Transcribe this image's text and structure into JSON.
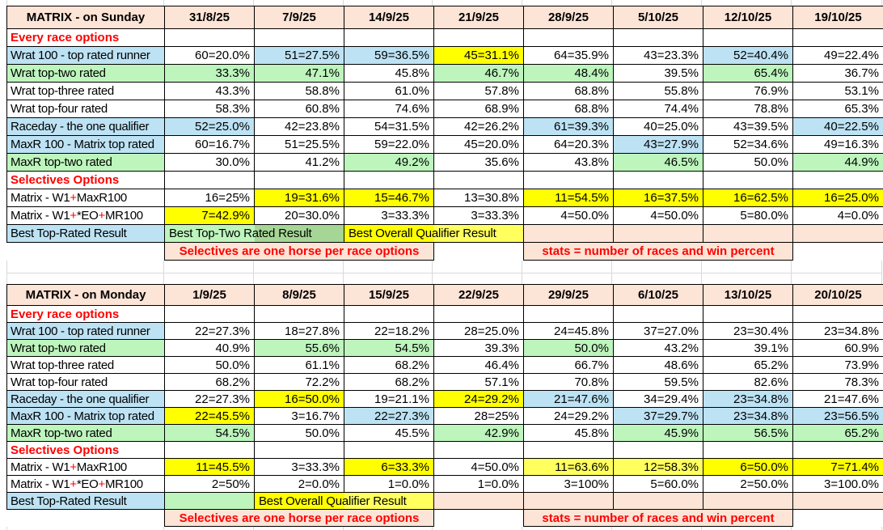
{
  "colors": {
    "header_fill": "#FCE4D6",
    "blue_fill": "#BDE2F4",
    "green_fill": "#BDF5BD",
    "dark_green_fill": "#A5D696",
    "yellow_fill": "#FFFF00",
    "light_yellow_fill": "#FFFF5E",
    "red_text": "#FF0000",
    "gridline": "#D9D9D9",
    "cell_border": "#000000"
  },
  "sunday": {
    "title": "MATRIX - on Sunday",
    "dates": [
      "31/8/25",
      "7/9/25",
      "14/9/25",
      "21/9/25",
      "28/9/25",
      "5/10/25",
      "12/10/25",
      "19/10/25"
    ],
    "rows": [
      {
        "type": "section",
        "label": "Every race options"
      },
      {
        "type": "data",
        "label": "Wrat 100 - top rated runner",
        "label_bg": "b",
        "cells": [
          [
            "60=20.0%",
            "w"
          ],
          [
            "51=27.5%",
            "b"
          ],
          [
            "59=36.5%",
            "b"
          ],
          [
            "45=31.1%",
            "y"
          ],
          [
            "64=35.9%",
            "w"
          ],
          [
            "43=23.3%",
            "w"
          ],
          [
            "52=40.4%",
            "b"
          ],
          [
            "49=22.4%",
            "w"
          ]
        ]
      },
      {
        "type": "data",
        "label": "Wrat top-two rated",
        "label_bg": "g",
        "cells": [
          [
            "33.3%",
            "g"
          ],
          [
            "47.1%",
            "g"
          ],
          [
            "45.8%",
            "w"
          ],
          [
            "46.7%",
            "g"
          ],
          [
            "48.4%",
            "g"
          ],
          [
            "39.5%",
            "w"
          ],
          [
            "65.4%",
            "g"
          ],
          [
            "36.7%",
            "w"
          ]
        ]
      },
      {
        "type": "data",
        "label": "Wrat top-three rated",
        "label_bg": "w",
        "cells": [
          [
            "43.3%",
            "w"
          ],
          [
            "58.8%",
            "w"
          ],
          [
            "61.0%",
            "w"
          ],
          [
            "57.8%",
            "w"
          ],
          [
            "68.8%",
            "w"
          ],
          [
            "55.8%",
            "w"
          ],
          [
            "76.9%",
            "w"
          ],
          [
            "53.1%",
            "w"
          ]
        ]
      },
      {
        "type": "data",
        "label": "Wrat top-four rated",
        "label_bg": "w",
        "cells": [
          [
            "58.3%",
            "w"
          ],
          [
            "60.8%",
            "w"
          ],
          [
            "74.6%",
            "w"
          ],
          [
            "68.9%",
            "w"
          ],
          [
            "68.8%",
            "w"
          ],
          [
            "74.4%",
            "w"
          ],
          [
            "78.8%",
            "w"
          ],
          [
            "65.3%",
            "w"
          ]
        ]
      },
      {
        "type": "data",
        "label": "Raceday - the one qualifier",
        "label_bg": "b",
        "cells": [
          [
            "52=25.0%",
            "b"
          ],
          [
            "42=23.8%",
            "w"
          ],
          [
            "54=31.5%",
            "w"
          ],
          [
            "42=26.2%",
            "w"
          ],
          [
            "61=39.3%",
            "b"
          ],
          [
            "40=25.0%",
            "w"
          ],
          [
            "43=39.5%",
            "w"
          ],
          [
            "40=22.5%",
            "b"
          ]
        ]
      },
      {
        "type": "data",
        "label": "MaxR 100 - Matrix top rated",
        "label_bg": "b",
        "cells": [
          [
            "60=16.7%",
            "w"
          ],
          [
            "51=25.5%",
            "w"
          ],
          [
            "59=22.0%",
            "w"
          ],
          [
            "45=20.0%",
            "w"
          ],
          [
            "64=20.3%",
            "w"
          ],
          [
            "43=27.9%",
            "b"
          ],
          [
            "52=34.6%",
            "w"
          ],
          [
            "49=16.3%",
            "w"
          ]
        ]
      },
      {
        "type": "data",
        "label": "MaxR top-two rated",
        "label_bg": "g",
        "cells": [
          [
            "30.0%",
            "w"
          ],
          [
            "41.2%",
            "w"
          ],
          [
            "49.2%",
            "g"
          ],
          [
            "35.6%",
            "w"
          ],
          [
            "43.8%",
            "w"
          ],
          [
            "46.5%",
            "g"
          ],
          [
            "50.0%",
            "w"
          ],
          [
            "44.9%",
            "g"
          ]
        ]
      },
      {
        "type": "section",
        "label": "Selectives Options"
      },
      {
        "type": "data",
        "label_parts": [
          {
            "t": "Matrix - W1"
          },
          {
            "t": "+",
            "red": true
          },
          {
            "t": "MaxR100"
          }
        ],
        "label_bg": "w",
        "cells": [
          [
            "16=25%",
            "w"
          ],
          [
            "19=31.6%",
            "y"
          ],
          [
            "15=46.7%",
            "y"
          ],
          [
            "13=30.8%",
            "w"
          ],
          [
            "11=54.5%",
            "y"
          ],
          [
            "16=37.5%",
            "y"
          ],
          [
            "16=62.5%",
            "y"
          ],
          [
            "16=25.0%",
            "y"
          ]
        ]
      },
      {
        "type": "data",
        "label_parts": [
          {
            "t": "Matrix - W1"
          },
          {
            "t": "+",
            "red": true
          },
          {
            "t": "*EO"
          },
          {
            "t": "+",
            "red": true
          },
          {
            "t": "MR100"
          }
        ],
        "label_bg": "w",
        "cells": [
          [
            "7=42.9%",
            "y"
          ],
          [
            "20=30.0%",
            "w"
          ],
          [
            "3=33.3%",
            "w"
          ],
          [
            "3=33.3%",
            "w"
          ],
          [
            "4=50.0%",
            "w"
          ],
          [
            "4=50.0%",
            "w"
          ],
          [
            "5=80.0%",
            "w"
          ],
          [
            "4=0.0%",
            "w"
          ]
        ]
      }
    ],
    "best_row": {
      "label": "Best Top-Rated Result",
      "banners": [
        {
          "text": "Best Top-Two Rated Result",
          "cells": [
            "bg-g",
            "bg-g2"
          ]
        },
        {
          "text": "Best Overall Qualifier Result",
          "cells": [
            "bg-y",
            "bg-ly"
          ]
        },
        {
          "text": "",
          "cells": [
            "bg-peach"
          ]
        },
        {
          "text": "",
          "cells": [
            "bg-peach"
          ]
        },
        {
          "text": "",
          "cells": [
            "bg-peach"
          ]
        },
        {
          "text": "",
          "cells": [
            "bg-peach"
          ]
        }
      ]
    },
    "note_row": {
      "segments": [
        {
          "text": "Selectives are one horse per race options",
          "span": 3,
          "box": true
        },
        {
          "text": "",
          "span": 1,
          "box": false
        },
        {
          "text": "stats = number of races and win percent",
          "span": 3,
          "box": true
        },
        {
          "text": "",
          "span": 1,
          "box": false
        }
      ]
    }
  },
  "monday": {
    "title": "MATRIX - on Monday",
    "dates": [
      "1/9/25",
      "8/9/25",
      "15/9/25",
      "22/9/25",
      "29/9/25",
      "6/10/25",
      "13/10/25",
      "20/10/25"
    ],
    "rows": [
      {
        "type": "section",
        "label": "Every race options"
      },
      {
        "type": "data",
        "label": "Wrat 100 - top rated runner",
        "label_bg": "b",
        "cells": [
          [
            "22=27.3%",
            "w"
          ],
          [
            "18=27.8%",
            "w"
          ],
          [
            "22=18.2%",
            "w"
          ],
          [
            "28=25.0%",
            "w"
          ],
          [
            "24=45.8%",
            "w"
          ],
          [
            "37=27.0%",
            "w"
          ],
          [
            "23=30.4%",
            "w"
          ],
          [
            "23=34.8%",
            "w"
          ]
        ]
      },
      {
        "type": "data",
        "label": "Wrat top-two rated",
        "label_bg": "g",
        "cells": [
          [
            "40.9%",
            "w"
          ],
          [
            "55.6%",
            "g"
          ],
          [
            "54.5%",
            "g"
          ],
          [
            "39.3%",
            "w"
          ],
          [
            "50.0%",
            "g"
          ],
          [
            "43.2%",
            "w"
          ],
          [
            "39.1%",
            "w"
          ],
          [
            "60.9%",
            "w"
          ]
        ]
      },
      {
        "type": "data",
        "label": "Wrat top-three rated",
        "label_bg": "w",
        "cells": [
          [
            "50.0%",
            "w"
          ],
          [
            "61.1%",
            "w"
          ],
          [
            "68.2%",
            "w"
          ],
          [
            "46.4%",
            "w"
          ],
          [
            "66.7%",
            "w"
          ],
          [
            "48.6%",
            "w"
          ],
          [
            "65.2%",
            "w"
          ],
          [
            "73.9%",
            "w"
          ]
        ]
      },
      {
        "type": "data",
        "label": "Wrat top-four rated",
        "label_bg": "w",
        "cells": [
          [
            "68.2%",
            "w"
          ],
          [
            "72.2%",
            "w"
          ],
          [
            "68.2%",
            "w"
          ],
          [
            "57.1%",
            "w"
          ],
          [
            "70.8%",
            "w"
          ],
          [
            "59.5%",
            "w"
          ],
          [
            "82.6%",
            "w"
          ],
          [
            "78.3%",
            "w"
          ]
        ]
      },
      {
        "type": "data",
        "label": "Raceday - the one qualifier",
        "label_bg": "b",
        "cells": [
          [
            "22=27.3%",
            "w"
          ],
          [
            "16=50.0%",
            "y"
          ],
          [
            "19=21.1%",
            "w"
          ],
          [
            "24=29.2%",
            "y"
          ],
          [
            "21=47.6%",
            "b"
          ],
          [
            "34=29.4%",
            "w"
          ],
          [
            "23=34.8%",
            "b"
          ],
          [
            "21=47.6%",
            "w"
          ]
        ]
      },
      {
        "type": "data",
        "label": "MaxR 100 - Matrix top rated",
        "label_bg": "b",
        "cells": [
          [
            "22=45.5%",
            "y"
          ],
          [
            "3=16.7%",
            "w"
          ],
          [
            "22=27.3%",
            "b"
          ],
          [
            "28=25%",
            "w"
          ],
          [
            "24=29.2%",
            "w"
          ],
          [
            "37=29.7%",
            "b"
          ],
          [
            "23=34.8%",
            "b"
          ],
          [
            "23=56.5%",
            "b"
          ]
        ]
      },
      {
        "type": "data",
        "label": "MaxR top-two rated",
        "label_bg": "g",
        "cells": [
          [
            "54.5%",
            "g"
          ],
          [
            "50.0%",
            "w"
          ],
          [
            "45.5%",
            "w"
          ],
          [
            "42.9%",
            "g"
          ],
          [
            "45.8%",
            "w"
          ],
          [
            "45.9%",
            "g"
          ],
          [
            "56.5%",
            "g"
          ],
          [
            "65.2%",
            "g"
          ]
        ]
      },
      {
        "type": "section",
        "label": "Selectives Options"
      },
      {
        "type": "data",
        "label_parts": [
          {
            "t": "Matrix - W1"
          },
          {
            "t": "+",
            "red": true
          },
          {
            "t": "MaxR100"
          }
        ],
        "label_bg": "w",
        "cells": [
          [
            "11=45.5%",
            "y"
          ],
          [
            "3=33.3%",
            "w"
          ],
          [
            "6=33.3%",
            "y"
          ],
          [
            "4=50.0%",
            "w"
          ],
          [
            "11=63.6%",
            "ly"
          ],
          [
            "12=58.3%",
            "ly"
          ],
          [
            "6=50.0%",
            "y"
          ],
          [
            "7=71.4%",
            "y"
          ]
        ]
      },
      {
        "type": "data",
        "label_parts": [
          {
            "t": "Matrix - W1"
          },
          {
            "t": "+",
            "red": true
          },
          {
            "t": "*EO"
          },
          {
            "t": "+",
            "red": true
          },
          {
            "t": "MR100"
          }
        ],
        "label_bg": "w",
        "cells": [
          [
            "2=50%",
            "w"
          ],
          [
            "2=0.0%",
            "w"
          ],
          [
            "1=0.0%",
            "w"
          ],
          [
            "1=0.0%",
            "w"
          ],
          [
            "3=100%",
            "w"
          ],
          [
            "5=60.0%",
            "w"
          ],
          [
            "2=50.0%",
            "w"
          ],
          [
            "3=100.0%",
            "w"
          ]
        ]
      }
    ],
    "best_row": {
      "label": "Best Top-Rated Result",
      "banners": [
        {
          "text": "",
          "cells": [
            "bg-g"
          ]
        },
        {
          "text": "Best Overall Qualifier Result",
          "cells": [
            "bg-y",
            "bg-ly"
          ]
        },
        {
          "text": "",
          "cells": [
            "bg-peach"
          ]
        },
        {
          "text": "",
          "cells": [
            "bg-peach"
          ]
        },
        {
          "text": "",
          "cells": [
            "bg-peach"
          ]
        },
        {
          "text": "",
          "cells": [
            "bg-peach"
          ]
        },
        {
          "text": "",
          "cells": [
            "bg-peach"
          ]
        }
      ]
    },
    "note_row": {
      "segments": [
        {
          "text": "Selectives are one horse per race options",
          "span": 3,
          "box": true
        },
        {
          "text": "",
          "span": 1,
          "box": false
        },
        {
          "text": "stats = number of races and win percent",
          "span": 3,
          "box": true
        },
        {
          "text": "",
          "span": 1,
          "box": false
        }
      ]
    }
  }
}
